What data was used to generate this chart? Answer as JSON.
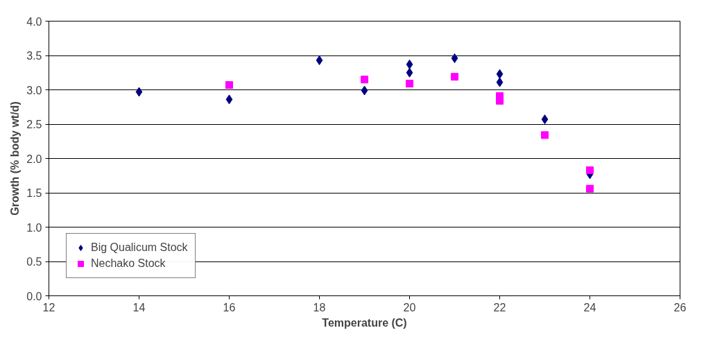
{
  "chart_data": {
    "type": "scatter",
    "xlabel": "Temperature (C)",
    "ylabel": "Growth (% body wt/d)",
    "xlim": [
      12,
      26
    ],
    "xticks": [
      12,
      14,
      16,
      18,
      20,
      22,
      24,
      26
    ],
    "ylim": [
      0,
      4
    ],
    "yticks": [
      {
        "value": 0,
        "label": "0.0"
      },
      {
        "value": 0.5,
        "label": "0.5"
      },
      {
        "value": 1,
        "label": "1.0"
      },
      {
        "value": 1.5,
        "label": "1.5"
      },
      {
        "value": 2,
        "label": "2.0"
      },
      {
        "value": 2.5,
        "label": "2.5"
      },
      {
        "value": 3,
        "label": "3.0"
      },
      {
        "value": 3.5,
        "label": "3.5"
      },
      {
        "value": 4,
        "label": "4.0"
      }
    ],
    "grid": "y",
    "legend": "bottom left",
    "series": [
      {
        "name": "Big Qualicum Stock",
        "color": "#000080",
        "marker": "diamond",
        "x": [
          14,
          16,
          18,
          19,
          20,
          20,
          21,
          22,
          22,
          23,
          24
        ],
        "values": [
          2.97,
          2.86,
          3.43,
          2.99,
          3.37,
          3.25,
          3.46,
          3.23,
          3.11,
          2.57,
          1.77
        ]
      },
      {
        "name": "Nechako Stock",
        "color": "#ff00ff",
        "marker": "square",
        "x": [
          16,
          19,
          20,
          21,
          22,
          22,
          23,
          24,
          24
        ],
        "values": [
          3.07,
          3.15,
          3.09,
          3.19,
          2.91,
          2.84,
          2.34,
          1.83,
          1.56
        ]
      }
    ]
  }
}
